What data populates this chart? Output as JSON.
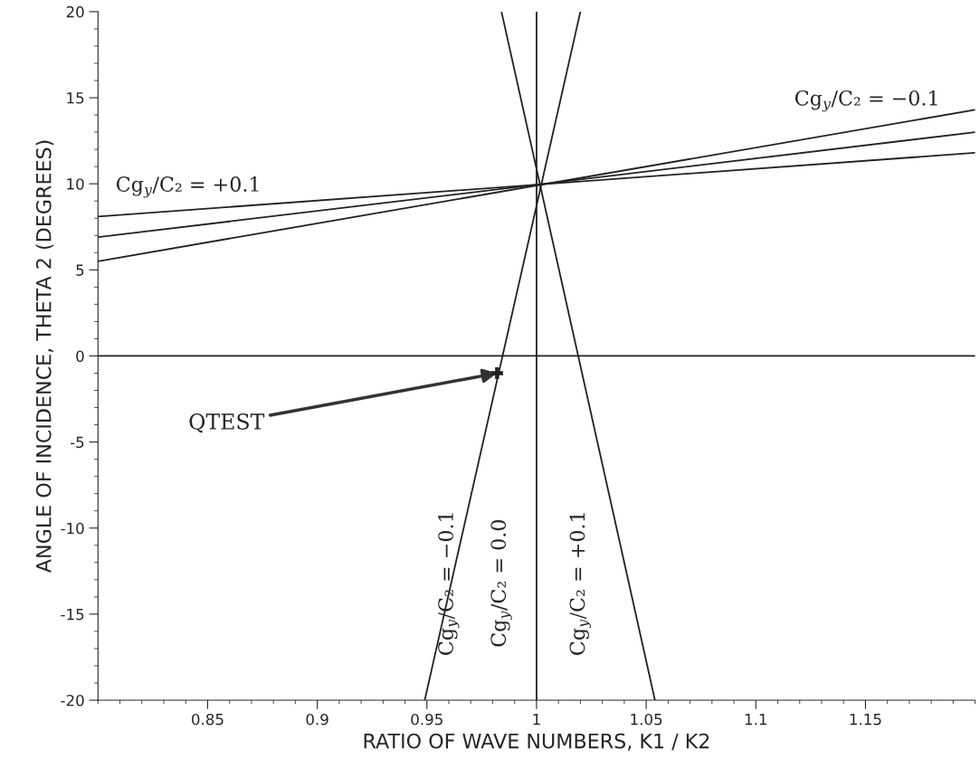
{
  "chart_data": {
    "type": "line",
    "xlabel": "RATIO OF WAVE NUMBERS, K1 / K2",
    "ylabel": "ANGLE OF INCIDENCE, THETA 2 (DEGREES)",
    "xlim": [
      0.8,
      1.2
    ],
    "ylim": [
      -20,
      20
    ],
    "xticks": [
      0.85,
      0.9,
      0.95,
      1,
      1.05,
      1.1,
      1.15
    ],
    "yticks": [
      -20,
      -15,
      -10,
      -5,
      0,
      5,
      10,
      15,
      20
    ],
    "grid": false,
    "legend": false,
    "marker": "none",
    "line_style": "solid",
    "series": [
      {
        "color": "#222222",
        "x": [
          0.8,
          1.2
        ],
        "values": [
          8.1,
          11.8
        ]
      },
      {
        "color": "#222222",
        "x": [
          0.8,
          1.2
        ],
        "values": [
          6.9,
          13.0
        ]
      },
      {
        "color": "#222222",
        "x": [
          0.8,
          1.2
        ],
        "values": [
          5.5,
          14.3
        ]
      },
      {
        "color": "#222222",
        "x": [
          0.949,
          1.02
        ],
        "values": [
          -20,
          20
        ]
      },
      {
        "color": "#222222",
        "x": [
          1.054,
          0.984
        ],
        "values": [
          -20,
          20
        ]
      },
      {
        "color": "#222222",
        "x": [
          1.0,
          1.0
        ],
        "values": [
          -20,
          20
        ]
      },
      {
        "color": "#222222",
        "x": [
          0.8,
          1.2
        ],
        "values": [
          0,
          0
        ]
      },
      {
        "type": "scatter",
        "marker": "cross",
        "color": "#222222",
        "x": [
          0.982
        ],
        "values": [
          -1.0
        ]
      }
    ],
    "annotations": [
      "Cg$_{y}$/C₂ = +0.1",
      "Cg$_{y}$/C₂ = −0.1",
      "Cg$_{y}$/C₂ = −0.1",
      "Cg$_{y}$/C₂ = 0.0",
      "Cg$_{y}$/C₂ = +0.1",
      {
        "text": "QTEST",
        "x": 0.982,
        "y": -1.0
      }
    ]
  }
}
